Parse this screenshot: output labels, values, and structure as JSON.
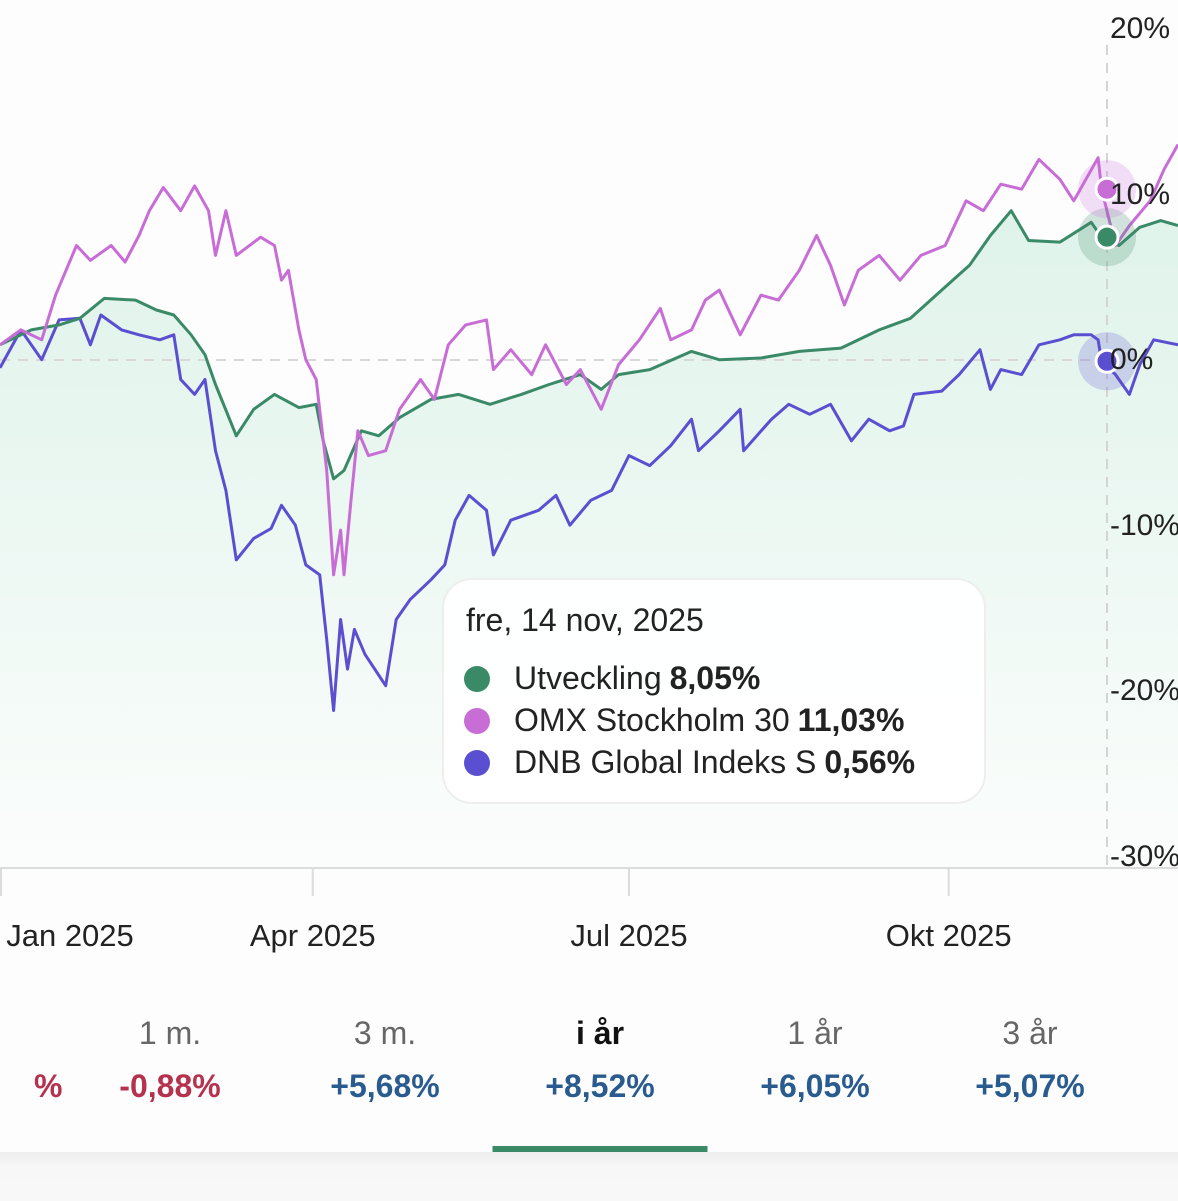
{
  "colors": {
    "utveckling": "#3a8a68",
    "omx": "#c86dd6",
    "dnb": "#5b4fd1",
    "negative": "#b5324f",
    "positive": "#2a5b8f",
    "active_tab": "#3a8a68"
  },
  "chart_data": {
    "type": "line",
    "title": "",
    "xlabel": "",
    "ylabel": "",
    "y_axis_position": "right",
    "ylim": [
      -30,
      20
    ],
    "y_ticks": [
      "20%",
      "10%",
      "0%",
      "-10%",
      "-20%",
      "-30%"
    ],
    "y_tick_values": [
      20,
      10,
      0,
      -10,
      -20,
      -30
    ],
    "xlim": [
      "2025-01-01",
      "2025-12-06"
    ],
    "x_ticks": [
      {
        "label": "Jan 2025",
        "date": "2025-01-01"
      },
      {
        "label": "Apr 2025",
        "date": "2025-04-01"
      },
      {
        "label": "Jul 2025",
        "date": "2025-07-01"
      },
      {
        "label": "Okt 2025",
        "date": "2025-10-01"
      }
    ],
    "zero_line": "dashed",
    "crosshair_date": "2025-11-14",
    "series": [
      {
        "name": "Utveckling",
        "key": "utveckling",
        "area_fill": true,
        "values": [
          [
            "2025-01-01",
            0.8
          ],
          [
            "2025-01-10",
            1.7
          ],
          [
            "2025-01-18",
            2.0
          ],
          [
            "2025-01-24",
            2.4
          ],
          [
            "2025-01-31",
            3.6
          ],
          [
            "2025-02-09",
            3.5
          ],
          [
            "2025-02-15",
            2.9
          ],
          [
            "2025-02-20",
            2.6
          ],
          [
            "2025-02-25",
            1.4
          ],
          [
            "2025-03-01",
            0.2
          ],
          [
            "2025-03-04",
            -1.6
          ],
          [
            "2025-03-10",
            -4.7
          ],
          [
            "2025-03-15",
            -3.1
          ],
          [
            "2025-03-21",
            -2.2
          ],
          [
            "2025-03-28",
            -3.0
          ],
          [
            "2025-04-02",
            -2.8
          ],
          [
            "2025-04-04",
            -5.0
          ],
          [
            "2025-04-07",
            -7.3
          ],
          [
            "2025-04-10",
            -6.8
          ],
          [
            "2025-04-15",
            -4.4
          ],
          [
            "2025-04-20",
            -4.7
          ],
          [
            "2025-04-26",
            -3.6
          ],
          [
            "2025-05-05",
            -2.5
          ],
          [
            "2025-05-13",
            -2.2
          ],
          [
            "2025-05-22",
            -2.8
          ],
          [
            "2025-05-31",
            -2.2
          ],
          [
            "2025-06-08",
            -1.6
          ],
          [
            "2025-06-17",
            -1.0
          ],
          [
            "2025-06-23",
            -1.9
          ],
          [
            "2025-06-28",
            -1.0
          ],
          [
            "2025-07-07",
            -0.7
          ],
          [
            "2025-07-19",
            0.4
          ],
          [
            "2025-07-27",
            -0.1
          ],
          [
            "2025-08-08",
            0.0
          ],
          [
            "2025-08-19",
            0.4
          ],
          [
            "2025-08-31",
            0.6
          ],
          [
            "2025-09-11",
            1.7
          ],
          [
            "2025-09-20",
            2.4
          ],
          [
            "2025-09-29",
            4.1
          ],
          [
            "2025-10-07",
            5.6
          ],
          [
            "2025-10-13",
            7.4
          ],
          [
            "2025-10-19",
            8.9
          ],
          [
            "2025-10-24",
            7.1
          ],
          [
            "2025-11-02",
            7.0
          ],
          [
            "2025-11-11",
            8.2
          ],
          [
            "2025-11-14",
            7.3
          ],
          [
            "2025-11-19",
            6.8
          ],
          [
            "2025-11-25",
            7.9
          ],
          [
            "2025-12-01",
            8.3
          ],
          [
            "2025-12-06",
            8.0
          ]
        ]
      },
      {
        "name": "OMX Stockholm 30",
        "key": "omx",
        "values": [
          [
            "2025-01-01",
            0.8
          ],
          [
            "2025-01-07",
            1.7
          ],
          [
            "2025-01-13",
            1.1
          ],
          [
            "2025-01-17",
            3.8
          ],
          [
            "2025-01-23",
            6.8
          ],
          [
            "2025-01-27",
            5.9
          ],
          [
            "2025-02-02",
            6.8
          ],
          [
            "2025-02-06",
            5.8
          ],
          [
            "2025-02-10",
            7.4
          ],
          [
            "2025-02-13",
            8.9
          ],
          [
            "2025-02-17",
            10.3
          ],
          [
            "2025-02-22",
            8.9
          ],
          [
            "2025-02-26",
            10.4
          ],
          [
            "2025-03-02",
            8.9
          ],
          [
            "2025-03-04",
            6.2
          ],
          [
            "2025-03-07",
            8.9
          ],
          [
            "2025-03-10",
            6.2
          ],
          [
            "2025-03-17",
            7.3
          ],
          [
            "2025-03-21",
            6.8
          ],
          [
            "2025-03-23",
            4.7
          ],
          [
            "2025-03-25",
            5.3
          ],
          [
            "2025-03-28",
            1.7
          ],
          [
            "2025-03-30",
            -0.1
          ],
          [
            "2025-04-02",
            -1.3
          ],
          [
            "2025-04-05",
            -6.8
          ],
          [
            "2025-04-07",
            -13.1
          ],
          [
            "2025-04-09",
            -10.4
          ],
          [
            "2025-04-10",
            -13.1
          ],
          [
            "2025-04-12",
            -8.6
          ],
          [
            "2025-04-14",
            -4.4
          ],
          [
            "2025-04-17",
            -5.9
          ],
          [
            "2025-04-22",
            -5.6
          ],
          [
            "2025-04-26",
            -3.1
          ],
          [
            "2025-05-02",
            -1.3
          ],
          [
            "2025-05-06",
            -2.5
          ],
          [
            "2025-05-10",
            0.8
          ],
          [
            "2025-05-15",
            2.0
          ],
          [
            "2025-05-21",
            2.3
          ],
          [
            "2025-05-23",
            -0.7
          ],
          [
            "2025-05-28",
            0.5
          ],
          [
            "2025-06-03",
            -1.0
          ],
          [
            "2025-06-07",
            0.8
          ],
          [
            "2025-06-13",
            -1.6
          ],
          [
            "2025-06-17",
            -0.7
          ],
          [
            "2025-06-23",
            -3.1
          ],
          [
            "2025-06-28",
            -0.4
          ],
          [
            "2025-07-04",
            1.1
          ],
          [
            "2025-07-10",
            3.0
          ],
          [
            "2025-07-13",
            1.1
          ],
          [
            "2025-07-19",
            1.7
          ],
          [
            "2025-07-23",
            3.5
          ],
          [
            "2025-07-27",
            4.1
          ],
          [
            "2025-08-02",
            1.4
          ],
          [
            "2025-08-08",
            3.8
          ],
          [
            "2025-08-13",
            3.5
          ],
          [
            "2025-08-19",
            5.3
          ],
          [
            "2025-08-24",
            7.4
          ],
          [
            "2025-08-28",
            5.6
          ],
          [
            "2025-09-01",
            3.2
          ],
          [
            "2025-09-05",
            5.3
          ],
          [
            "2025-09-11",
            6.2
          ],
          [
            "2025-09-17",
            4.7
          ],
          [
            "2025-09-23",
            6.2
          ],
          [
            "2025-09-30",
            6.8
          ],
          [
            "2025-10-06",
            9.5
          ],
          [
            "2025-10-11",
            8.9
          ],
          [
            "2025-10-16",
            10.5
          ],
          [
            "2025-10-22",
            10.2
          ],
          [
            "2025-10-27",
            12.0
          ],
          [
            "2025-11-02",
            10.8
          ],
          [
            "2025-11-06",
            9.5
          ],
          [
            "2025-11-13",
            12.1
          ],
          [
            "2025-11-14",
            10.2
          ],
          [
            "2025-11-18",
            6.8
          ],
          [
            "2025-11-22",
            8.0
          ],
          [
            "2025-11-28",
            9.5
          ],
          [
            "2025-12-02",
            11.4
          ],
          [
            "2025-12-06",
            12.9
          ]
        ]
      },
      {
        "name": "DNB Global Indeks S",
        "key": "dnb",
        "values": [
          [
            "2025-01-01",
            -0.6
          ],
          [
            "2025-01-07",
            1.7
          ],
          [
            "2025-01-13",
            -0.1
          ],
          [
            "2025-01-18",
            2.3
          ],
          [
            "2025-01-24",
            2.4
          ],
          [
            "2025-01-27",
            0.8
          ],
          [
            "2025-01-30",
            2.6
          ],
          [
            "2025-02-05",
            1.7
          ],
          [
            "2025-02-10",
            1.4
          ],
          [
            "2025-02-16",
            1.1
          ],
          [
            "2025-02-20",
            1.4
          ],
          [
            "2025-02-22",
            -1.3
          ],
          [
            "2025-02-26",
            -2.2
          ],
          [
            "2025-03-01",
            -1.3
          ],
          [
            "2025-03-04",
            -5.6
          ],
          [
            "2025-03-07",
            -8.0
          ],
          [
            "2025-03-10",
            -12.2
          ],
          [
            "2025-03-15",
            -10.9
          ],
          [
            "2025-03-20",
            -10.3
          ],
          [
            "2025-03-23",
            -8.9
          ],
          [
            "2025-03-27",
            -10.1
          ],
          [
            "2025-03-30",
            -12.5
          ],
          [
            "2025-04-03",
            -13.1
          ],
          [
            "2025-04-05",
            -17.0
          ],
          [
            "2025-04-07",
            -21.3
          ],
          [
            "2025-04-09",
            -15.8
          ],
          [
            "2025-04-11",
            -18.8
          ],
          [
            "2025-04-13",
            -16.4
          ],
          [
            "2025-04-16",
            -17.9
          ],
          [
            "2025-04-22",
            -19.8
          ],
          [
            "2025-04-25",
            -15.8
          ],
          [
            "2025-04-29",
            -14.6
          ],
          [
            "2025-05-05",
            -13.4
          ],
          [
            "2025-05-09",
            -12.5
          ],
          [
            "2025-05-12",
            -9.8
          ],
          [
            "2025-05-16",
            -8.3
          ],
          [
            "2025-05-21",
            -9.2
          ],
          [
            "2025-05-23",
            -11.9
          ],
          [
            "2025-05-28",
            -9.8
          ],
          [
            "2025-06-05",
            -9.2
          ],
          [
            "2025-06-10",
            -8.3
          ],
          [
            "2025-06-14",
            -10.1
          ],
          [
            "2025-06-20",
            -8.6
          ],
          [
            "2025-06-26",
            -8.0
          ],
          [
            "2025-07-01",
            -5.9
          ],
          [
            "2025-07-07",
            -6.5
          ],
          [
            "2025-07-13",
            -5.3
          ],
          [
            "2025-07-19",
            -3.7
          ],
          [
            "2025-07-21",
            -5.6
          ],
          [
            "2025-07-27",
            -4.4
          ],
          [
            "2025-08-02",
            -3.1
          ],
          [
            "2025-08-03",
            -5.6
          ],
          [
            "2025-08-11",
            -3.7
          ],
          [
            "2025-08-16",
            -2.8
          ],
          [
            "2025-08-22",
            -3.4
          ],
          [
            "2025-08-28",
            -2.8
          ],
          [
            "2025-09-03",
            -5.0
          ],
          [
            "2025-09-08",
            -3.7
          ],
          [
            "2025-09-14",
            -4.4
          ],
          [
            "2025-09-18",
            -4.1
          ],
          [
            "2025-09-21",
            -2.2
          ],
          [
            "2025-09-29",
            -2.0
          ],
          [
            "2025-10-04",
            -1.0
          ],
          [
            "2025-10-10",
            0.5
          ],
          [
            "2025-10-13",
            -1.9
          ],
          [
            "2025-10-16",
            -0.7
          ],
          [
            "2025-10-22",
            -1.0
          ],
          [
            "2025-10-27",
            0.8
          ],
          [
            "2025-11-02",
            1.1
          ],
          [
            "2025-11-06",
            1.4
          ],
          [
            "2025-11-11",
            1.4
          ],
          [
            "2025-11-13",
            1.1
          ],
          [
            "2025-11-14",
            -0.2
          ],
          [
            "2025-11-18",
            -1.0
          ],
          [
            "2025-11-22",
            -2.2
          ],
          [
            "2025-11-25",
            -0.4
          ],
          [
            "2025-11-29",
            1.1
          ],
          [
            "2025-12-06",
            0.8
          ]
        ]
      }
    ],
    "legend_placement": "none"
  },
  "tooltip": {
    "date": "fre, 14 nov, 2025",
    "rows": [
      {
        "name": "Utveckling",
        "value": "8,05%"
      },
      {
        "name": "OMX Stockholm 30",
        "value": "11,03%"
      },
      {
        "name": "DNB Global Indeks S",
        "value": "0,56%"
      }
    ]
  },
  "periods": [
    {
      "label": "",
      "value": "%",
      "sign": "negative",
      "active": false
    },
    {
      "label": "1 m.",
      "value": "-0,88%",
      "sign": "negative",
      "active": false
    },
    {
      "label": "3 m.",
      "value": "+5,68%",
      "sign": "positive",
      "active": false
    },
    {
      "label": "i år",
      "value": "+8,52%",
      "sign": "positive",
      "active": true
    },
    {
      "label": "1 år",
      "value": "+6,05%",
      "sign": "positive",
      "active": false
    },
    {
      "label": "3 år",
      "value": "+5,07%",
      "sign": "positive",
      "active": false
    }
  ]
}
